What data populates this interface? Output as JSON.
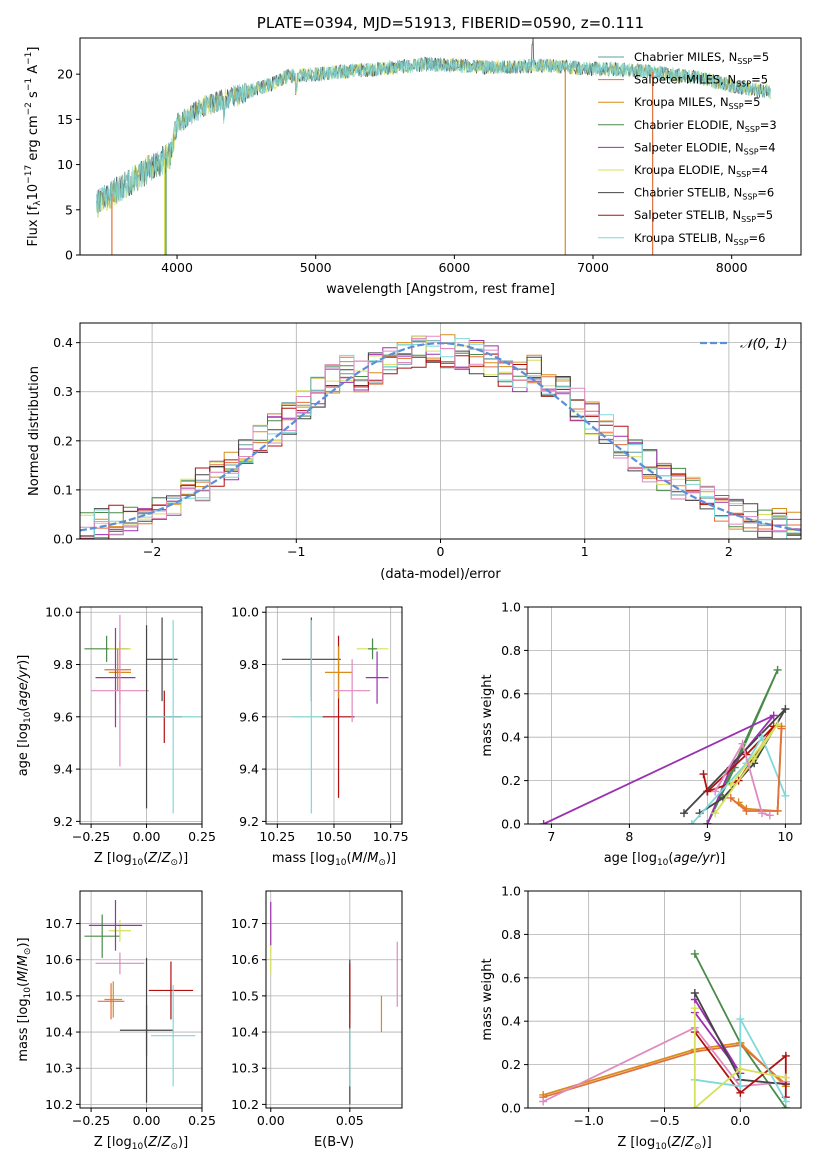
{
  "colors": {
    "Chabrier MILES": "#5f9ea0",
    "Salpeter MILES": "#e2703a",
    "Kroupa MILES": "#d98c1c",
    "Chabrier ELODIE": "#4a8a4a",
    "Salpeter ELODIE": "#9b30b0",
    "Kroupa ELODIE": "#d6e05a",
    "Chabrier STELIB": "#444444",
    "Salpeter STELIB": "#b01010",
    "Kroupa STELIB": "#80d8d8",
    "pink": "#e08ac0",
    "normal": "#5b8fd6"
  },
  "chart_data": [
    {
      "id": "spectrum",
      "type": "line",
      "title": "PLATE=0394, MJD=51913, FIBERID=0590, z=0.111",
      "xlabel": "wavelength [Angstrom, rest frame]",
      "ylabel": "Flux [f_λ 10^-17 erg cm^-2 s^-1 A^-1]",
      "xlim": [
        3300,
        8500
      ],
      "ylim": [
        0,
        24
      ],
      "xticks": [
        "4000",
        "5000",
        "6000",
        "7000",
        "8000"
      ],
      "yticks": [
        "0",
        "5",
        "10",
        "15",
        "20"
      ],
      "legend_position": "upper-right",
      "legend": [
        {
          "base": "Chabrier MILES, N",
          "sub": "SSP",
          "tail": "=5"
        },
        {
          "base": "Salpeter MILES, N",
          "sub": "SSP",
          "tail": "=5"
        },
        {
          "base": "Kroupa MILES, N",
          "sub": "SSP",
          "tail": "=5"
        },
        {
          "base": "Chabrier ELODIE, N",
          "sub": "SSP",
          "tail": "=3"
        },
        {
          "base": "Salpeter ELODIE, N",
          "sub": "SSP",
          "tail": "=4"
        },
        {
          "base": "Kroupa ELODIE, N",
          "sub": "SSP",
          "tail": "=4"
        },
        {
          "base": "Chabrier STELIB, N",
          "sub": "SSP",
          "tail": "=6"
        },
        {
          "base": "Salpeter STELIB, N",
          "sub": "SSP",
          "tail": "=5"
        },
        {
          "base": "Kroupa STELIB, N",
          "sub": "SSP",
          "tail": "=6"
        }
      ],
      "continuum": [
        [
          3420,
          5.5
        ],
        [
          3500,
          6.5
        ],
        [
          3600,
          7.5
        ],
        [
          3700,
          8.5
        ],
        [
          3800,
          9.5
        ],
        [
          3900,
          10.5
        ],
        [
          3950,
          11
        ],
        [
          4000,
          14.5
        ],
        [
          4100,
          15.5
        ],
        [
          4200,
          16.5
        ],
        [
          4300,
          17
        ],
        [
          4400,
          17.5
        ],
        [
          4500,
          18
        ],
        [
          4600,
          18.5
        ],
        [
          4700,
          19
        ],
        [
          4800,
          19.8
        ],
        [
          5000,
          20
        ],
        [
          5200,
          20.3
        ],
        [
          5400,
          20.5
        ],
        [
          5600,
          20.8
        ],
        [
          5800,
          21.1
        ],
        [
          6000,
          21
        ],
        [
          6200,
          20.8
        ],
        [
          6400,
          20.8
        ],
        [
          6600,
          21
        ],
        [
          6800,
          20.8
        ],
        [
          7000,
          20.6
        ],
        [
          7200,
          20.5
        ],
        [
          7400,
          20.3
        ],
        [
          7600,
          19.9
        ],
        [
          7800,
          19.5
        ],
        [
          8000,
          18.7
        ],
        [
          8200,
          18.2
        ],
        [
          8280,
          18
        ]
      ],
      "dropouts": [
        [
          3530,
          "Salpeter MILES"
        ],
        [
          3910,
          "Kroupa ELODIE"
        ],
        [
          3920,
          "Chabrier ELODIE"
        ],
        [
          6800,
          "Kroupa MILES"
        ],
        [
          7430,
          "Salpeter MILES"
        ]
      ]
    },
    {
      "id": "residuals",
      "type": "histogram",
      "xlabel": "(data-model)/error",
      "ylabel": "Normed distribution",
      "xlim": [
        -2.5,
        2.5
      ],
      "ylim": [
        0,
        0.44
      ],
      "xticks": [
        "−2",
        "−1",
        "0",
        "1",
        "2"
      ],
      "yticks": [
        "0.0",
        "0.1",
        "0.2",
        "0.3",
        "0.4"
      ],
      "legend": "𝒩(0, 1)",
      "bin_width": 0.1,
      "gaussian": {
        "mean": 0,
        "sigma": 1
      }
    },
    {
      "id": "age-vs-Z",
      "type": "errorbar",
      "xlabel": "Z [log10(Z/Z⊙)]",
      "ylabel": "age [log10(age/yr)]",
      "xlim": [
        -0.3,
        0.25
      ],
      "ylim": [
        9.19,
        10.02
      ],
      "xticks": [
        "−0.25",
        "0.00",
        "0.25"
      ],
      "yticks": [
        "9.2",
        "9.4",
        "9.6",
        "9.8",
        "10.0"
      ],
      "points": [
        {
          "x": -0.18,
          "y": 9.86,
          "xerr": 0.1,
          "yerr": 0.05,
          "c": "Chabrier ELODIE"
        },
        {
          "x": -0.12,
          "y": 9.86,
          "xerr": 0.05,
          "yerr": 0.03,
          "c": "Kroupa ELODIE"
        },
        {
          "x": -0.12,
          "y": 9.77,
          "xerr": 0.05,
          "yerr": 0.12,
          "c": "Kroupa MILES"
        },
        {
          "x": -0.14,
          "y": 9.75,
          "xerr": 0.09,
          "yerr": 0.19,
          "c": "Salpeter ELODIE"
        },
        {
          "x": -0.13,
          "y": 9.78,
          "xerr": 0.06,
          "yerr": 0.08,
          "c": "Salpeter MILES"
        },
        {
          "x": -0.12,
          "y": 9.7,
          "xerr": 0.13,
          "yerr": 0.29,
          "c": "pink"
        },
        {
          "x": 0.07,
          "y": 9.82,
          "xerr": 0.07,
          "yerr": 0.16,
          "c": "Chabrier STELIB"
        },
        {
          "x": 0.0,
          "y": 9.6,
          "xerr": 0.0,
          "yerr": 0.35,
          "c": "Chabrier STELIB"
        },
        {
          "x": 0.08,
          "y": 9.6,
          "xerr": 0.08,
          "yerr": 0.1,
          "c": "Salpeter STELIB"
        },
        {
          "x": 0.12,
          "y": 9.6,
          "xerr": 0.12,
          "yerr": 0.37,
          "c": "Kroupa STELIB"
        }
      ]
    },
    {
      "id": "age-vs-mass",
      "type": "errorbar",
      "xlabel": "mass [log10(M/M⊙)]",
      "ylabel": "",
      "xlim": [
        10.2,
        10.8
      ],
      "ylim": [
        9.19,
        10.02
      ],
      "xticks": [
        "10.25",
        "10.50",
        "10.75"
      ],
      "yticks": [
        "9.2",
        "9.4",
        "9.6",
        "9.8",
        "10.0"
      ],
      "points": [
        {
          "x": 10.4,
          "y": 9.82,
          "xerr": 0.13,
          "yerr": 0.16,
          "c": "Chabrier STELIB"
        },
        {
          "x": 10.4,
          "y": 9.6,
          "xerr": 0.09,
          "yerr": 0.37,
          "c": "Kroupa STELIB"
        },
        {
          "x": 10.52,
          "y": 9.6,
          "xerr": 0.07,
          "yerr": 0.31,
          "c": "Salpeter STELIB"
        },
        {
          "x": 10.52,
          "y": 9.77,
          "xerr": 0.06,
          "yerr": 0.1,
          "c": "Kroupa MILES"
        },
        {
          "x": 10.58,
          "y": 9.7,
          "xerr": 0.08,
          "yerr": 0.12,
          "c": "pink"
        },
        {
          "x": 10.67,
          "y": 9.86,
          "xerr": 0.07,
          "yerr": 0.03,
          "c": "Kroupa ELODIE"
        },
        {
          "x": 10.67,
          "y": 9.86,
          "xerr": 0.02,
          "yerr": 0.04,
          "c": "Chabrier ELODIE"
        },
        {
          "x": 10.69,
          "y": 9.75,
          "xerr": 0.05,
          "yerr": 0.1,
          "c": "Salpeter ELODIE"
        }
      ]
    },
    {
      "id": "weight-vs-age",
      "type": "line",
      "xlabel": "age  [log10(age/yr)]",
      "ylabel": "mass weight",
      "xlim": [
        6.7,
        10.2
      ],
      "ylim": [
        0,
        1.0
      ],
      "xticks": [
        "7",
        "8",
        "9",
        "10"
      ],
      "yticks": [
        "0.0",
        "0.2",
        "0.4",
        "0.6",
        "0.8",
        "1.0"
      ],
      "series": [
        {
          "c": "Chabrier ELODIE",
          "pts": [
            [
              9.0,
              0.0
            ],
            [
              9.9,
              0.71
            ],
            [
              9.35,
              0.26
            ],
            [
              9.0,
              0.0
            ]
          ]
        },
        {
          "c": "Salpeter ELODIE",
          "pts": [
            [
              6.9,
              0.0
            ],
            [
              9.85,
              0.5
            ],
            [
              9.3,
              0.26
            ],
            [
              9.0,
              0.0
            ]
          ]
        },
        {
          "c": "Chabrier STELIB",
          "pts": [
            [
              8.7,
              0.05
            ],
            [
              10.0,
              0.53
            ],
            [
              9.6,
              0.28
            ],
            [
              9.2,
              0.12
            ],
            [
              8.9,
              0.05
            ]
          ]
        },
        {
          "c": "Salpeter STELIB",
          "pts": [
            [
              8.95,
              0.23
            ],
            [
              9.0,
              0.15
            ],
            [
              9.4,
              0.2
            ],
            [
              9.85,
              0.45
            ],
            [
              9.5,
              0.32
            ],
            [
              9.0,
              0.15
            ]
          ]
        },
        {
          "c": "Kroupa STELIB",
          "pts": [
            [
              8.8,
              0.0
            ],
            [
              9.5,
              0.28
            ],
            [
              9.7,
              0.4
            ],
            [
              10.0,
              0.13
            ]
          ]
        },
        {
          "c": "Kroupa ELODIE",
          "pts": [
            [
              9.1,
              0.05
            ],
            [
              9.6,
              0.3
            ],
            [
              9.9,
              0.46
            ],
            [
              9.3,
              0.18
            ]
          ]
        },
        {
          "c": "Kroupa MILES",
          "pts": [
            [
              9.4,
              0.1
            ],
            [
              9.5,
              0.07
            ],
            [
              9.9,
              0.06
            ],
            [
              9.95,
              0.45
            ]
          ]
        },
        {
          "c": "Salpeter MILES",
          "pts": [
            [
              9.3,
              0.12
            ],
            [
              9.5,
              0.06
            ],
            [
              9.9,
              0.06
            ],
            [
              9.95,
              0.44
            ]
          ]
        },
        {
          "c": "pink",
          "pts": [
            [
              9.1,
              0.15
            ],
            [
              9.45,
              0.37
            ],
            [
              9.7,
              0.05
            ],
            [
              9.8,
              0.04
            ]
          ]
        }
      ]
    },
    {
      "id": "mass-vs-Z",
      "type": "errorbar",
      "xlabel": "Z [log10(Z/Z⊙)]",
      "ylabel": "mass [log10(M/M⊙)]",
      "xlim": [
        -0.3,
        0.25
      ],
      "ylim": [
        10.19,
        10.79
      ],
      "xticks": [
        "−0.25",
        "0.00",
        "0.25"
      ],
      "yticks": [
        "10.2",
        "10.3",
        "10.4",
        "10.5",
        "10.6",
        "10.7"
      ],
      "points": [
        {
          "x": -0.2,
          "y": 10.665,
          "xerr": 0.08,
          "yerr": 0.06,
          "c": "Chabrier ELODIE"
        },
        {
          "x": -0.12,
          "y": 10.68,
          "xerr": 0.05,
          "yerr": 0.03,
          "c": "Kroupa ELODIE"
        },
        {
          "x": -0.14,
          "y": 10.695,
          "xerr": 0.12,
          "yerr": 0.07,
          "c": "Salpeter ELODIE"
        },
        {
          "x": -0.12,
          "y": 10.59,
          "xerr": 0.11,
          "yerr": 0.03,
          "c": "pink"
        },
        {
          "x": -0.15,
          "y": 10.49,
          "xerr": 0.04,
          "yerr": 0.05,
          "c": "Kroupa MILES"
        },
        {
          "x": -0.16,
          "y": 10.485,
          "xerr": 0.06,
          "yerr": 0.05,
          "c": "Salpeter MILES"
        },
        {
          "x": 0.0,
          "y": 10.405,
          "xerr": 0.12,
          "yerr": 0.07,
          "c": "Chabrier STELIB"
        },
        {
          "x": 0.0,
          "y": 10.405,
          "xerr": 0.0,
          "yerr": 0.2,
          "c": "Chabrier STELIB"
        },
        {
          "x": 0.11,
          "y": 10.515,
          "xerr": 0.1,
          "yerr": 0.08,
          "c": "Salpeter STELIB"
        },
        {
          "x": 0.12,
          "y": 10.39,
          "xerr": 0.1,
          "yerr": 0.14,
          "c": "Kroupa STELIB"
        }
      ]
    },
    {
      "id": "mass-vs-EBV",
      "type": "errorbar",
      "xlabel": "E(B-V)",
      "ylabel": "",
      "xlim": [
        -0.003,
        0.083
      ],
      "ylim": [
        10.19,
        10.79
      ],
      "xticks": [
        "0.00",
        "0.05"
      ],
      "yticks": [
        "10.2",
        "10.3",
        "10.4",
        "10.5",
        "10.6",
        "10.7"
      ],
      "points": [
        {
          "x": 0.0,
          "y": 10.64,
          "xerr": 0.0,
          "yerr": 0.08,
          "c": "Kroupa ELODIE"
        },
        {
          "x": 0.0,
          "y": 10.7,
          "xerr": 0.0,
          "yerr": 0.06,
          "c": "Salpeter ELODIE"
        },
        {
          "x": 0.05,
          "y": 10.4,
          "xerr": 0.0,
          "yerr": 0.2,
          "c": "Chabrier STELIB"
        },
        {
          "x": 0.05,
          "y": 10.35,
          "xerr": 0.0,
          "yerr": 0.1,
          "c": "Kroupa STELIB"
        },
        {
          "x": 0.05,
          "y": 10.5,
          "xerr": 0.0,
          "yerr": 0.09,
          "c": "Salpeter STELIB"
        },
        {
          "x": 0.07,
          "y": 10.45,
          "xerr": 0.0,
          "yerr": 0.05,
          "c": "Kroupa MILES"
        },
        {
          "x": 0.08,
          "y": 10.56,
          "xerr": 0.0,
          "yerr": 0.09,
          "c": "pink"
        }
      ]
    },
    {
      "id": "weight-vs-Z",
      "type": "line",
      "xlabel": "Z [log10(Z/Z⊙)]",
      "ylabel": "mass weight",
      "xlim": [
        -1.4,
        0.4
      ],
      "ylim": [
        0,
        1.0
      ],
      "xticks": [
        "−1.0",
        "−0.5",
        "0.0"
      ],
      "yticks": [
        "0.0",
        "0.2",
        "0.4",
        "0.6",
        "0.8",
        "1.0"
      ],
      "series": [
        {
          "c": "Chabrier ELODIE",
          "pts": [
            [
              -0.3,
              0.71
            ],
            [
              0.0,
              0.3
            ],
            [
              0.3,
              0.0
            ]
          ]
        },
        {
          "c": "Kroupa MILES",
          "pts": [
            [
              -1.3,
              0.06
            ],
            [
              -0.3,
              0.27
            ],
            [
              0.0,
              0.3
            ],
            [
              0.3,
              0.1
            ]
          ]
        },
        {
          "c": "Salpeter MILES",
          "pts": [
            [
              -1.3,
              0.05
            ],
            [
              -0.3,
              0.26
            ],
            [
              0.0,
              0.29
            ],
            [
              0.3,
              0.11
            ]
          ]
        },
        {
          "c": "pink",
          "pts": [
            [
              -1.3,
              0.03
            ],
            [
              -0.3,
              0.37
            ],
            [
              0.0,
              0.1
            ],
            [
              0.3,
              0.12
            ]
          ]
        },
        {
          "c": "Salpeter ELODIE",
          "pts": [
            [
              -0.3,
              0.5
            ],
            [
              0.0,
              0.16
            ],
            [
              -0.3,
              0.44
            ]
          ]
        },
        {
          "c": "Chabrier STELIB",
          "pts": [
            [
              -0.3,
              0.53
            ],
            [
              0.0,
              0.13
            ],
            [
              0.3,
              0.11
            ]
          ]
        },
        {
          "c": "Salpeter STELIB",
          "pts": [
            [
              -0.3,
              0.35
            ],
            [
              0.0,
              0.07
            ],
            [
              0.3,
              0.24
            ],
            [
              0.3,
              0.05
            ]
          ]
        },
        {
          "c": "Kroupa STELIB",
          "pts": [
            [
              -0.3,
              0.13
            ],
            [
              0.0,
              0.1
            ],
            [
              0.0,
              0.41
            ],
            [
              0.3,
              0.03
            ]
          ]
        },
        {
          "c": "Kroupa ELODIE",
          "pts": [
            [
              -0.3,
              0.46
            ],
            [
              -0.3,
              0.0
            ],
            [
              0.0,
              0.18
            ],
            [
              0.3,
              0.14
            ]
          ]
        }
      ]
    }
  ]
}
